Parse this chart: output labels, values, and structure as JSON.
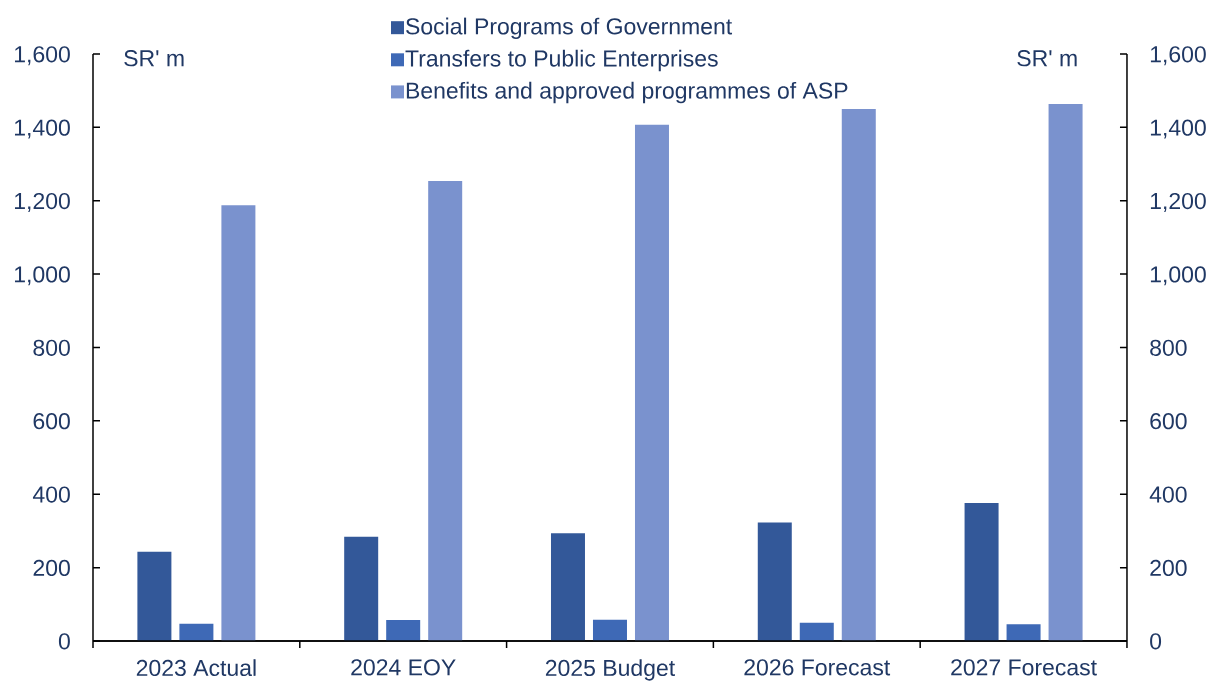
{
  "chart_data": {
    "type": "bar",
    "categories": [
      "2023 Actual",
      "2024 EOY",
      "2025 Budget",
      "2026 Forecast",
      "2027 Forecast"
    ],
    "series": [
      {
        "name": "Social Programs of Government",
        "color": "#335899",
        "values": [
          243,
          284,
          294,
          323,
          376
        ]
      },
      {
        "name": "Transfers to Public Enterprises",
        "color": "#3e69b6",
        "values": [
          47,
          57,
          58,
          50,
          46
        ]
      },
      {
        "name": "Benefits and approved programmes of ASP",
        "color": "#7a92ce",
        "values": [
          1188,
          1254,
          1407,
          1450,
          1464
        ]
      }
    ],
    "annotations": [
      "SR' m",
      "SR' m"
    ],
    "ylim": [
      0,
      1600
    ],
    "yticks": [
      0,
      200,
      400,
      600,
      800,
      {
        "value": 1000,
        "label": "1,000"
      },
      {
        "value": 1200,
        "label": "1,200"
      },
      {
        "value": 1400,
        "label": "1,400"
      },
      {
        "value": 1600,
        "label": "1,600"
      }
    ],
    "y2lim": [
      0,
      1600
    ],
    "y2ticks": [
      0,
      200,
      400,
      600,
      800,
      {
        "value": 1000,
        "label": "1,000"
      },
      {
        "value": 1200,
        "label": "1,200"
      },
      {
        "value": 1400,
        "label": "1,400"
      },
      {
        "value": 1600,
        "label": "1,600"
      }
    ],
    "legend": "top"
  }
}
